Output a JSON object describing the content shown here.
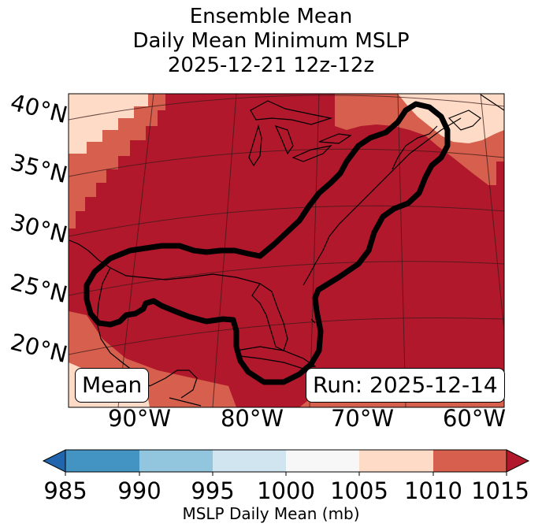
{
  "title": {
    "line1": "Ensemble Mean",
    "line2": "Daily Mean Minimum MSLP",
    "line3": "2025-12-21 12z-12z"
  },
  "map": {
    "lat_labels": [
      "40°N",
      "35°N",
      "30°N",
      "25°N",
      "20°N"
    ],
    "lon_labels": [
      "90°W",
      "80°W",
      "70°W",
      "60°W"
    ],
    "mean_box": "Mean",
    "run_box": "Run: 2025-12-14",
    "contour_hPa": 1010
  },
  "colorbar": {
    "ticks": [
      "985",
      "990",
      "995",
      "1000",
      "1005",
      "1010",
      "1015"
    ],
    "label": "MSLP Daily Mean (mb)",
    "colors": {
      "below": "#2166ac",
      "c985_990": "#4393c3",
      "c990_995": "#92c5de",
      "c995_1000": "#d1e5f0",
      "c1000_1005": "#f7f7f7",
      "c1005_1010": "#fddbc7",
      "c1010_1015": "#d6604d",
      "above": "#b2182b"
    }
  }
}
